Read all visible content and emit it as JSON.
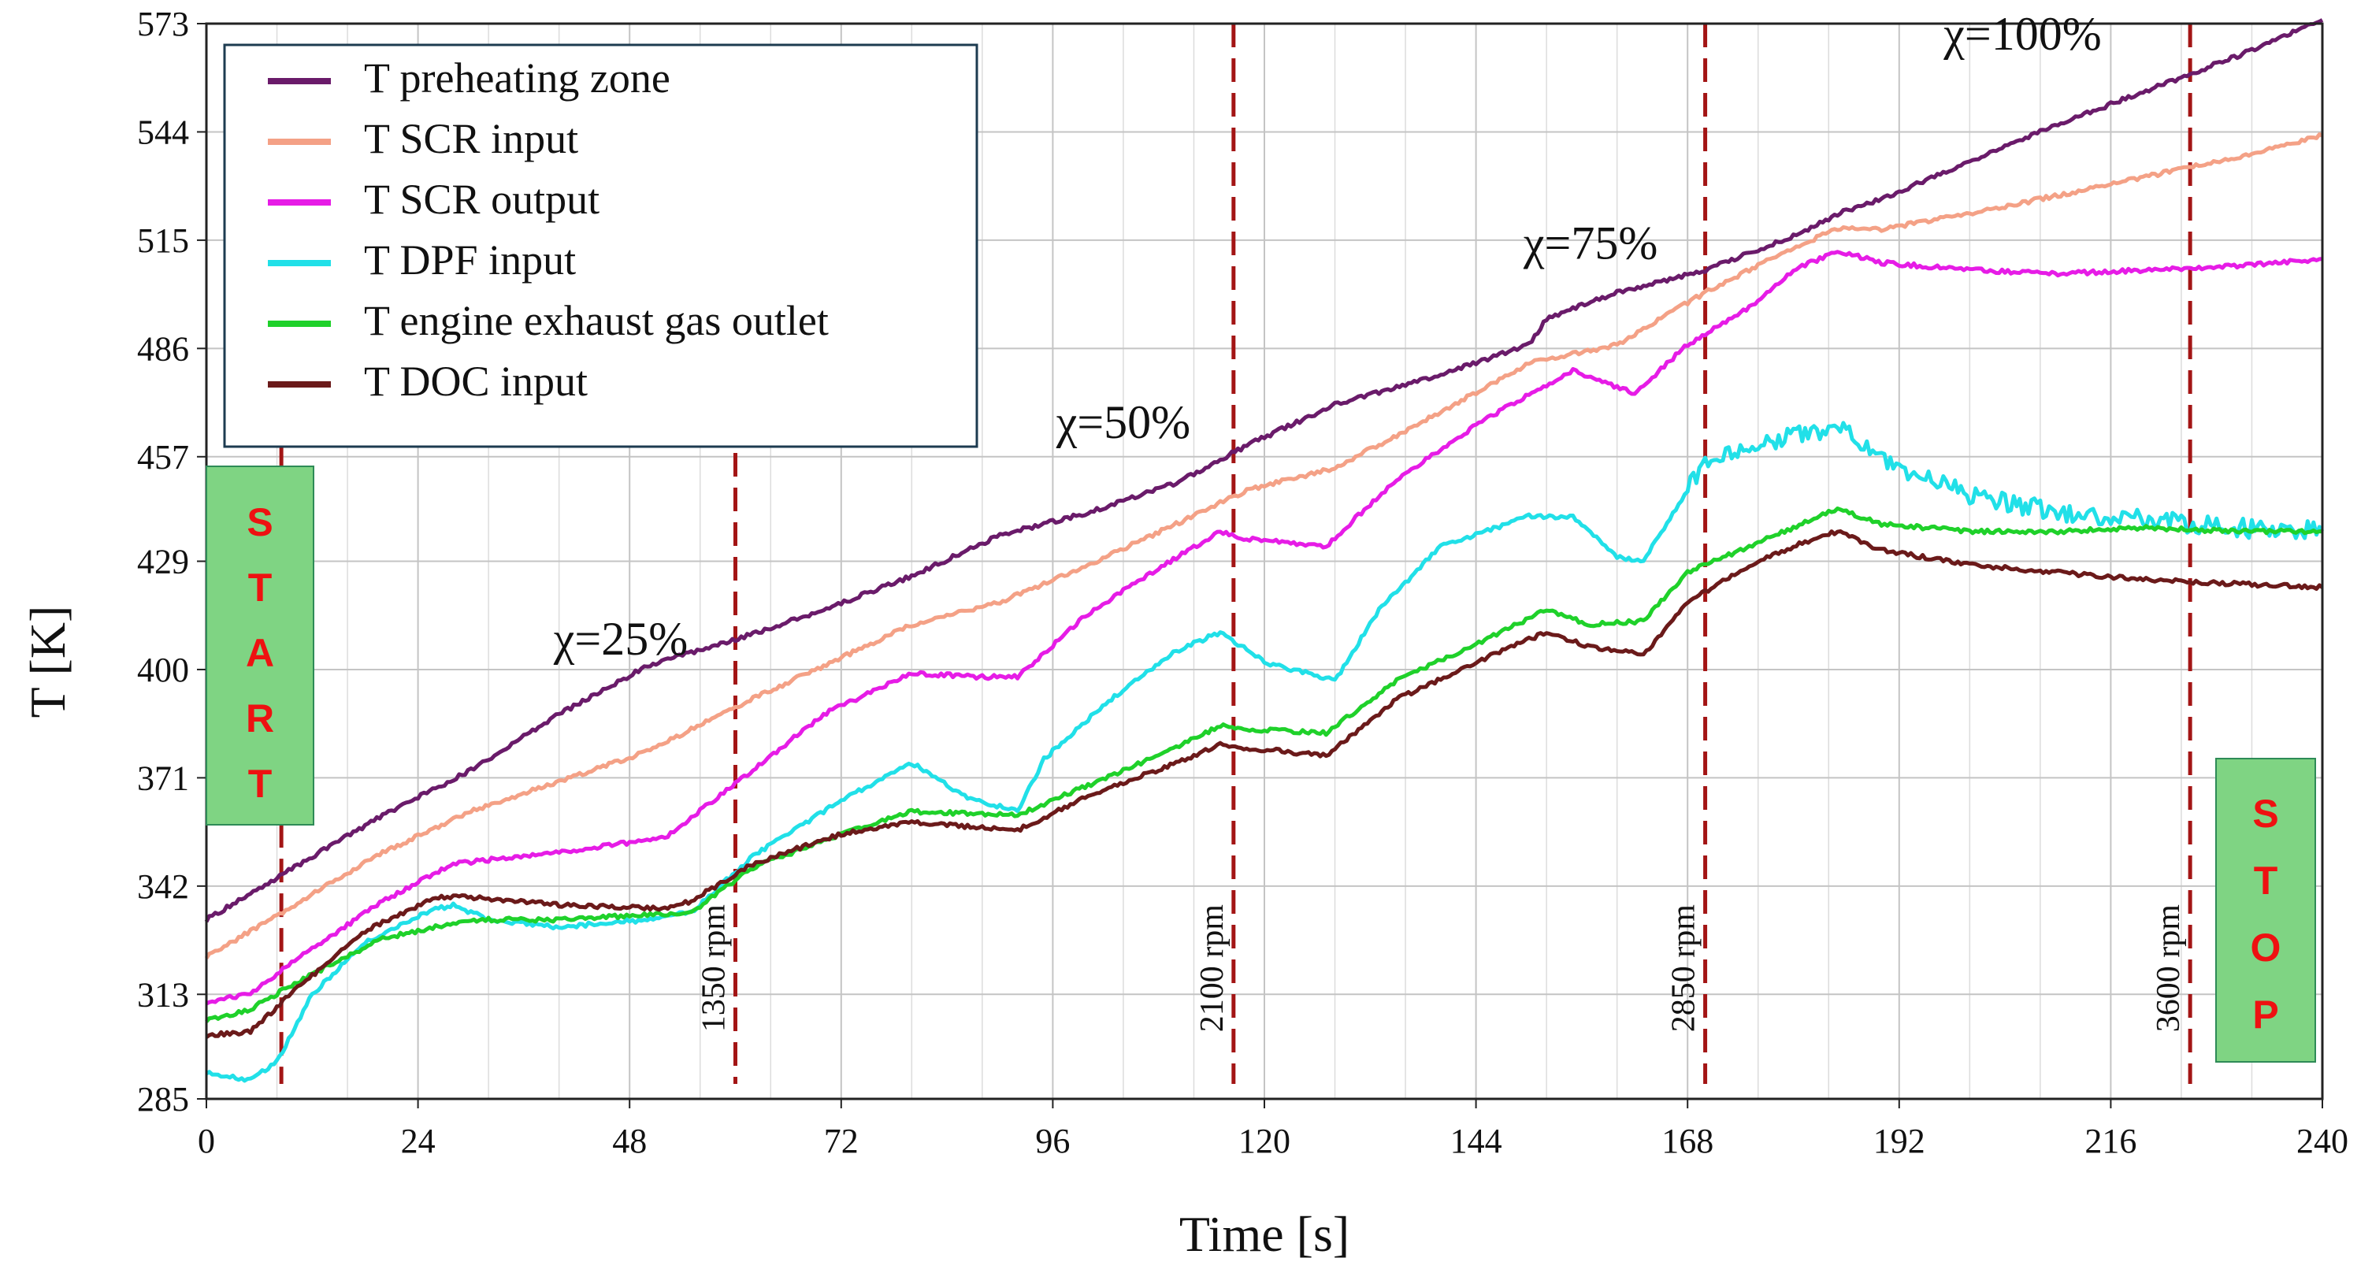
{
  "chart_data": {
    "type": "line",
    "title": "",
    "xlabel": "Time [s]",
    "ylabel": "T [K]",
    "xlim": [
      0,
      240
    ],
    "ylim": [
      285,
      573
    ],
    "xticks": [
      0,
      24,
      48,
      72,
      96,
      120,
      144,
      168,
      192,
      216,
      240
    ],
    "yticks": [
      285,
      313,
      342,
      371,
      400,
      429,
      457,
      486,
      515,
      544,
      573
    ],
    "x_tick_labels": [
      "0",
      "24",
      "48",
      "72",
      "96",
      "120",
      "144",
      "168",
      "192",
      "216",
      "240"
    ],
    "y_tick_labels": [
      "285",
      "313",
      "342",
      "371",
      "400",
      "429",
      "457",
      "486",
      "515",
      "544",
      "573"
    ],
    "grid": true,
    "legend_position": "top-left",
    "series": [
      {
        "name": "T preheating zone",
        "color": "#6a1b6a",
        "x": [
          0,
          10,
          20,
          30,
          40,
          50,
          60,
          70,
          80,
          90,
          100,
          110,
          118,
          128,
          140,
          150,
          152,
          160,
          170,
          180,
          185,
          190,
          200,
          210,
          220,
          230,
          240
        ],
        "y": [
          333,
          347,
          361,
          373,
          388,
          401,
          408,
          416,
          425,
          436,
          442,
          450,
          460,
          471,
          479,
          487,
          494,
          501,
          507,
          516,
          522,
          526,
          536,
          546,
          555,
          564,
          574
        ]
      },
      {
        "name": "T SCR input",
        "color": "#f4a186",
        "x": [
          0,
          10,
          20,
          30,
          40,
          50,
          60,
          70,
          80,
          90,
          100,
          110,
          118,
          128,
          140,
          150,
          160,
          170,
          180,
          185,
          190,
          200,
          210,
          220,
          230,
          240
        ],
        "y": [
          323,
          337,
          351,
          362,
          370,
          378,
          390,
          401,
          412,
          418,
          428,
          439,
          448,
          454,
          469,
          482,
          487,
          501,
          513,
          518,
          518,
          522,
          527,
          532,
          537,
          543
        ]
      },
      {
        "name": "T SCR output",
        "color": "#e61ce6",
        "x": [
          0,
          5,
          10,
          20,
          28,
          40,
          52,
          62,
          70,
          80,
          88,
          92,
          100,
          110,
          115,
          118,
          127,
          135,
          145,
          155,
          162,
          168,
          175,
          180,
          185,
          190,
          200,
          210,
          220,
          230,
          240
        ],
        "y": [
          311,
          313,
          322,
          338,
          348,
          351,
          355,
          373,
          388,
          399,
          398,
          398,
          415,
          430,
          437,
          435,
          433,
          451,
          467,
          480,
          474,
          487,
          497,
          507,
          512,
          509,
          507,
          506,
          507,
          508,
          510
        ]
      },
      {
        "name": "T DPF input",
        "color": "#21e0e8",
        "x": [
          0,
          5,
          8,
          12,
          18,
          25,
          28,
          32,
          40,
          50,
          55,
          62,
          72,
          80,
          86,
          92,
          95,
          102,
          110,
          115,
          120,
          128,
          133,
          140,
          150,
          155,
          160,
          163,
          168,
          170,
          175,
          180,
          185,
          190,
          200,
          210,
          220,
          230,
          240
        ],
        "y": [
          292,
          290,
          295,
          313,
          327,
          335,
          337,
          333,
          331,
          333,
          335,
          350,
          365,
          375,
          366,
          362,
          376,
          391,
          405,
          410,
          402,
          397,
          416,
          433,
          441,
          441,
          430,
          429,
          448,
          455,
          459,
          463,
          465,
          456,
          447,
          442,
          440,
          438,
          437
        ]
      },
      {
        "name": "T engine exhaust gas outlet",
        "color": "#1fd12a",
        "x": [
          0,
          5,
          10,
          20,
          30,
          40,
          55,
          62,
          72,
          80,
          92,
          100,
          110,
          115,
          118,
          127,
          135,
          145,
          152,
          157,
          163,
          168,
          175,
          180,
          185,
          190,
          200,
          210,
          220,
          230,
          240
        ],
        "y": [
          306,
          309,
          316,
          328,
          333,
          333,
          335,
          347,
          356,
          362,
          361,
          369,
          379,
          385,
          384,
          383,
          397,
          408,
          416,
          412,
          413,
          426,
          433,
          438,
          443,
          439,
          437,
          437,
          438,
          437,
          437
        ]
      },
      {
        "name": "T DOC input",
        "color": "#6b1a1a",
        "x": [
          0,
          5,
          10,
          18,
          26,
          30,
          40,
          52,
          55,
          62,
          72,
          80,
          92,
          100,
          110,
          115,
          118,
          127,
          135,
          145,
          152,
          157,
          163,
          168,
          175,
          180,
          185,
          190,
          200,
          210,
          220,
          230,
          240
        ],
        "y": [
          302,
          303,
          314,
          330,
          339,
          339,
          337,
          336,
          338,
          348,
          356,
          359,
          357,
          366,
          375,
          380,
          379,
          377,
          392,
          403,
          410,
          406,
          404,
          418,
          428,
          433,
          437,
          432,
          428,
          426,
          424,
          423,
          422
        ]
      }
    ],
    "vertical_markers": [
      {
        "x": 8.5,
        "label": ""
      },
      {
        "x": 60,
        "label": "1350 rpm"
      },
      {
        "x": 116.5,
        "label": "2100 rpm"
      },
      {
        "x": 170,
        "label": "2850 rpm"
      },
      {
        "x": 225,
        "label": "3600 rpm"
      }
    ],
    "annotations": [
      {
        "text": "χ=25%",
        "x": 47,
        "y": 404
      },
      {
        "text": "χ=50%",
        "x": 104,
        "y": 462
      },
      {
        "text": "χ=75%",
        "x": 157,
        "y": 510
      },
      {
        "text": "χ=100%",
        "x": 206,
        "y": 566
      }
    ],
    "start_box": {
      "letters": [
        "S",
        "T",
        "A",
        "R",
        "T"
      ]
    },
    "stop_box": {
      "letters": [
        "S",
        "T",
        "O",
        "P"
      ]
    },
    "marker_color": "#a31515",
    "box_fill": "#7fd483",
    "box_text_color": "#ee1111"
  }
}
